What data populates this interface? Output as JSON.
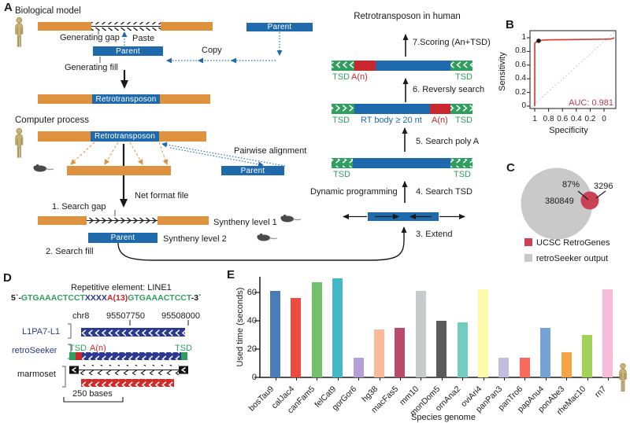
{
  "figure": {
    "panel_a": {
      "label": "A",
      "biological_model": "Biological model",
      "generating_gap": "Generating gap",
      "paste": "Paste",
      "parent": "Parent",
      "copy": "Copy",
      "generating_fill": "Generating fill",
      "retrotransposon": "Retrotransposon",
      "computer_process": "Computer process",
      "pairwise_alignment": "Pairwise alignment",
      "net_format_file": "Net format file",
      "step1": "1. Search gap",
      "syntheny_level_1": "Syntheny level 1",
      "syntheny_level_2": "Syntheny level 2",
      "step2": "2. Search fill",
      "step3": "3. Extend",
      "step4": "4. Search TSD",
      "dynamic_programming": "Dynamic programming",
      "step5": "5. Search poly A",
      "step6": "6. Reversly search",
      "step7": "7.Scoring (An+TSD)",
      "retrotransposon_in_human": "Retrotransposon in human",
      "tsd": "TSD",
      "a_n": "A(n)",
      "rt_body": "RT body ≥ 20 nt"
    },
    "panel_b": {
      "label": "B",
      "ylabel": "Sensitivity",
      "xlabel": "Specificity",
      "auc": "AUC: 0.981",
      "yticks": [
        "1",
        "0.8",
        "0.6",
        "0.4",
        "0.2",
        "0"
      ],
      "xticks": [
        "1",
        "0.8",
        "0.6",
        "0.4",
        "0.2",
        "0"
      ]
    },
    "panel_c": {
      "label": "C",
      "retroseeker_count": "380849",
      "ucsc_count": "3296",
      "overlap": "87%",
      "legend": [
        {
          "label": "UCSC RetroGenes",
          "color": "#cb4257"
        },
        {
          "label": "retroSeeker output",
          "color": "#c9c9c9"
        }
      ]
    },
    "panel_d": {
      "label": "D",
      "title": "Repetitive element: LINE1",
      "seq_prefix": "5`-",
      "seq_left": "GTGAAACTCCT",
      "seq_mid": "XXXX",
      "seq_an": "A(13)",
      "seq_right": "GTGAAACTCCT",
      "seq_suffix": "-3`",
      "chrom": "chr8",
      "coord_1": "95507750",
      "coord_2": "95508000",
      "track_1": "L1PA7-L1",
      "track_2": "retroSeeker",
      "track_3": "marmoset",
      "tsd": "TSD",
      "a_n": "A(n)",
      "scale": "250 bases"
    },
    "panel_e": {
      "label": "E"
    }
  },
  "chart_data": [
    {
      "type": "bar",
      "title": "",
      "categories": [
        "bosTau9",
        "calJac4",
        "canFam5",
        "felCat9",
        "gorGor6",
        "hg38",
        "macFas5",
        "mm10",
        "monDom5",
        "ornAna2",
        "oviAri4",
        "panPan3",
        "panTro6",
        "papAnu4",
        "ponAbe3",
        "rheMac10",
        "rn7"
      ],
      "values": [
        61,
        56,
        67,
        70,
        14,
        34,
        35,
        61,
        40,
        39,
        62,
        14,
        14,
        35,
        18,
        30,
        62
      ],
      "colors": [
        "#4a7db5",
        "#ed4a40",
        "#71c06c",
        "#45b8c8",
        "#b49fd8",
        "#fbbb9b",
        "#bc4a6c",
        "#c7cbcc",
        "#595a5c",
        "#72cdbe",
        "#fdfcab",
        "#c0bede",
        "#f9695c",
        "#74a3d4",
        "#faa346",
        "#a2d255",
        "#f8bcd9"
      ],
      "xlabel": "Species genome",
      "ylabel": "Used time (seconds)",
      "yticks": [
        0,
        20,
        40,
        60
      ],
      "ylim": [
        0,
        72
      ],
      "grid": false
    },
    {
      "type": "line",
      "name": "ROC curve",
      "xlabel": "Specificity",
      "ylabel": "Sensitivity",
      "x_reversed": true,
      "auc": 0.981,
      "diagonal": true,
      "points": [
        [
          1,
          0
        ],
        [
          1,
          0.92
        ],
        [
          0.97,
          0.95
        ],
        [
          0.95,
          0.955
        ],
        [
          0.9,
          0.965
        ],
        [
          0.8,
          0.97
        ],
        [
          0.6,
          0.972
        ],
        [
          0.4,
          0.975
        ],
        [
          0.2,
          0.978
        ],
        [
          0.05,
          0.98
        ],
        [
          0.02,
          0.99
        ],
        [
          0,
          1
        ]
      ],
      "marker_point": [
        0.95,
        0.955
      ]
    },
    {
      "type": "venn",
      "sets": [
        {
          "label": "retroSeeker output",
          "size": 380849
        },
        {
          "label": "UCSC RetroGenes",
          "size": 3296
        }
      ],
      "overlap_pct": 87
    }
  ]
}
